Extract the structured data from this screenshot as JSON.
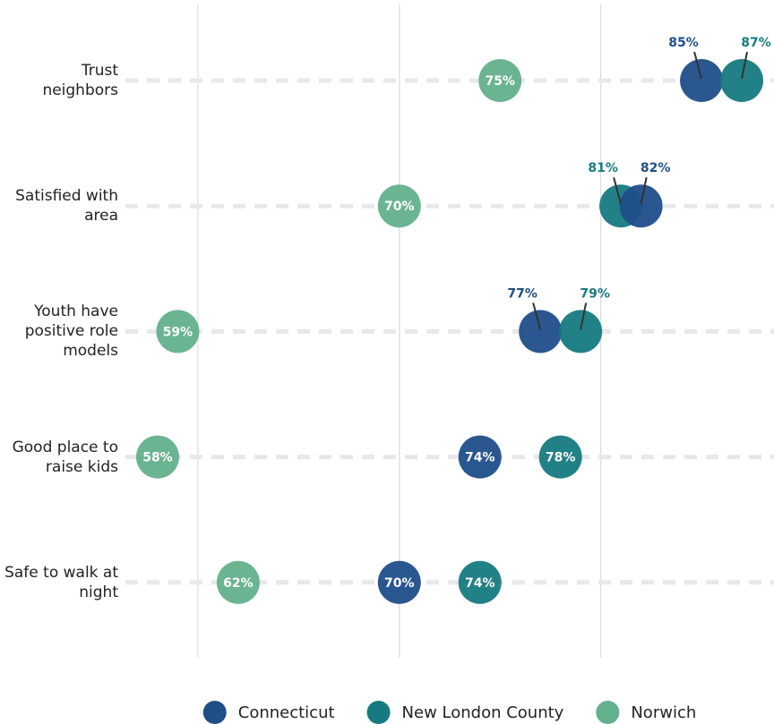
{
  "chart_data": {
    "type": "dot",
    "categories": [
      "Trust neighbors",
      "Satisfied with area",
      "Youth have positive role models",
      "Good place to raise kids",
      "Safe to walk at night"
    ],
    "series": [
      {
        "name": "Connecticut",
        "color": "#1f4e89",
        "values": [
          85,
          82,
          77,
          74,
          70
        ],
        "value_labels": [
          "85%",
          "82%",
          "77%",
          "74%",
          "70%"
        ]
      },
      {
        "name": "New London County",
        "color": "#167a80",
        "values": [
          87,
          81,
          79,
          78,
          74
        ],
        "value_labels": [
          "87%",
          "81%",
          "79%",
          "78%",
          "74%"
        ]
      },
      {
        "name": "Norwich",
        "color": "#63b08c",
        "values": [
          75,
          70,
          59,
          58,
          62
        ],
        "value_labels": [
          "75%",
          "70%",
          "59%",
          "58%",
          "62%"
        ]
      }
    ],
    "xlim": [
      56.4,
      88.6
    ],
    "xticks": [
      60,
      70,
      80
    ],
    "grid": true,
    "legend": "bottom"
  }
}
